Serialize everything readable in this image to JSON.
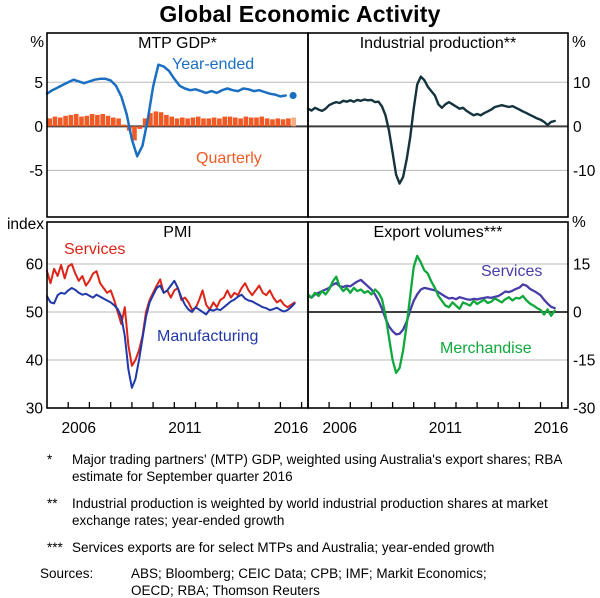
{
  "title": "Global Economic Activity",
  "colors": {
    "grid": "#b8b8b8",
    "zero": "#3d3d3d",
    "border": "#000000",
    "gdp_blue": "#1b6fc2",
    "bar_orange": "#f05a24",
    "bar_orange_light": "#f9ab80",
    "industrial_dark": "#14333f",
    "pmi_red": "#dd2417",
    "pmi_blue": "#2139a8",
    "exports_purple": "#473ca8",
    "exports_green": "#0fa83c"
  },
  "x_axis": {
    "label_years": [
      2006,
      2011,
      2016
    ],
    "domain": [
      2005,
      2017.3
    ]
  },
  "chart_data": [
    {
      "id": "mtp-gdp",
      "type": "line+bar",
      "title": "MTP GDP*",
      "row": 0,
      "col": 0,
      "axis_side": "left",
      "unit": "%",
      "ylim": [
        -10.3,
        10.6
      ],
      "grid_light": [
        5,
        -5
      ],
      "zero_line": true,
      "axis_labels": [
        5,
        0,
        -5
      ],
      "series": [
        {
          "name": "Year-ended",
          "color": "#1b6fc2",
          "width": 2.5,
          "start": 2005.0,
          "step": 0.25,
          "values": [
            3.7,
            4.1,
            4.4,
            4.7,
            5.0,
            5.3,
            5.1,
            4.9,
            5.1,
            5.3,
            5.4,
            5.4,
            5.2,
            4.6,
            3.4,
            1.4,
            -1.5,
            -3.4,
            -2.2,
            0.8,
            4.5,
            7.0,
            6.8,
            6.3,
            5.4,
            4.6,
            4.3,
            4.1,
            4.2,
            4.0,
            3.8,
            4.0,
            3.8,
            4.1,
            4.3,
            4.1,
            4.0,
            4.3,
            4.2,
            4.0,
            4.1,
            3.9,
            3.7,
            3.6,
            3.4,
            3.5
          ]
        }
      ],
      "bars": {
        "name": "Quarterly",
        "color": "#f05a24",
        "estimate_color": "#f9ab80",
        "last_estimate": true,
        "start": 2005.0,
        "step": 0.25,
        "values": [
          0.9,
          1.1,
          1.0,
          1.2,
          1.3,
          1.4,
          1.1,
          1.2,
          1.4,
          1.3,
          1.4,
          1.2,
          1.0,
          0.9,
          0.2,
          -0.5,
          -1.6,
          -0.3,
          0.9,
          1.5,
          1.7,
          1.6,
          1.3,
          1.1,
          0.9,
          1.0,
          0.9,
          1.0,
          1.1,
          0.9,
          0.9,
          1.0,
          0.9,
          1.1,
          1.1,
          1.0,
          0.9,
          1.1,
          1.0,
          1.0,
          1.1,
          0.9,
          0.8,
          0.9,
          0.8,
          0.9,
          1.0
        ]
      },
      "dot": {
        "x": 2016.6,
        "y": 3.5,
        "color": "#1b6fc2",
        "meaning": "RBA estimate"
      }
    },
    {
      "id": "industrial-production",
      "type": "line",
      "title": "Industrial production**",
      "row": 0,
      "col": 1,
      "axis_side": "right",
      "unit": "%",
      "ylim": [
        -20.6,
        21.2
      ],
      "grid_light": [
        10,
        -10
      ],
      "zero_line": true,
      "axis_labels": [
        10,
        0,
        -10
      ],
      "series": [
        {
          "name": "Industrial production",
          "color": "#14333f",
          "width": 2.4,
          "start": 2005.0,
          "step": 0.1667,
          "values": [
            4.0,
            3.6,
            4.2,
            3.8,
            3.5,
            4.0,
            4.8,
            5.2,
            5.5,
            5.3,
            5.8,
            5.6,
            5.9,
            5.6,
            6.0,
            5.8,
            6.1,
            5.9,
            6.0,
            5.5,
            5.6,
            4.5,
            2.5,
            -1.0,
            -6.0,
            -11.0,
            -13.0,
            -11.5,
            -7.5,
            -2.5,
            4.0,
            9.5,
            11.3,
            10.5,
            9.0,
            8.0,
            7.0,
            5.0,
            4.2,
            5.0,
            5.5,
            5.0,
            4.5,
            4.0,
            4.2,
            3.5,
            3.0,
            2.5,
            2.8,
            2.5,
            3.0,
            3.4,
            3.8,
            4.4,
            4.6,
            4.8,
            4.6,
            4.4,
            4.6,
            4.2,
            3.8,
            3.4,
            3.0,
            2.6,
            2.2,
            1.8,
            1.5,
            1.0,
            0.3,
            1.0,
            1.2
          ]
        }
      ]
    },
    {
      "id": "pmi",
      "type": "line",
      "title": "PMI",
      "row": 1,
      "col": 0,
      "axis_side": "left",
      "unit": "index",
      "ylim": [
        30,
        68.75
      ],
      "grid_light": [
        60,
        50,
        40
      ],
      "zero_line": false,
      "axis_labels": [
        60,
        50,
        40,
        30
      ],
      "series": [
        {
          "name": "Services",
          "color": "#dd2417",
          "width": 2.0,
          "start": 2005.0,
          "step": 0.1667,
          "values": [
            58.5,
            56.0,
            59.0,
            57.5,
            59.8,
            57.0,
            59.5,
            60.0,
            58.0,
            56.5,
            57.5,
            55.5,
            56.5,
            58.0,
            58.5,
            56.0,
            55.0,
            54.0,
            54.5,
            52.5,
            50.0,
            47.5,
            51.0,
            43.0,
            38.8,
            40.0,
            42.0,
            45.0,
            50.0,
            52.5,
            54.0,
            55.5,
            56.8,
            54.0,
            54.5,
            53.0,
            54.5,
            55.0,
            52.5,
            53.0,
            52.0,
            50.5,
            50.8,
            52.5,
            54.5,
            51.5,
            50.5,
            52.0,
            51.0,
            52.5,
            53.0,
            54.5,
            53.0,
            54.0,
            53.5,
            55.0,
            56.0,
            54.5,
            53.5,
            54.5,
            55.5,
            54.0,
            53.5,
            54.5,
            53.0,
            52.0,
            52.5,
            51.5,
            51.0,
            51.5,
            52.0
          ]
        },
        {
          "name": "Manufacturing",
          "color": "#2139a8",
          "width": 2.0,
          "start": 2005.0,
          "step": 0.1667,
          "values": [
            53.3,
            52.0,
            51.8,
            53.5,
            54.0,
            53.8,
            54.5,
            55.0,
            54.6,
            54.0,
            53.6,
            53.8,
            53.4,
            53.0,
            53.6,
            53.2,
            52.8,
            52.4,
            52.0,
            51.4,
            50.6,
            49.0,
            45.0,
            38.0,
            34.2,
            36.0,
            40.0,
            44.5,
            49.0,
            52.0,
            53.5,
            55.0,
            55.5,
            54.0,
            54.5,
            55.5,
            56.5,
            55.0,
            53.0,
            51.5,
            50.5,
            50.0,
            51.0,
            50.5,
            50.0,
            49.5,
            50.5,
            50.3,
            50.6,
            50.4,
            51.0,
            51.6,
            52.2,
            52.6,
            53.2,
            53.6,
            52.8,
            52.4,
            52.2,
            51.8,
            51.4,
            51.0,
            50.8,
            50.4,
            50.6,
            50.9,
            50.4,
            50.1,
            50.4,
            51.0,
            51.8
          ]
        }
      ]
    },
    {
      "id": "export-volumes",
      "type": "line",
      "title": "Export volumes***",
      "row": 1,
      "col": 1,
      "axis_side": "right",
      "unit": "%",
      "ylim": [
        -30,
        28.1
      ],
      "grid_light": [
        15,
        -15
      ],
      "zero_line": true,
      "axis_labels": [
        15,
        0,
        -15,
        -30
      ],
      "series": [
        {
          "name": "Services",
          "color": "#473ca8",
          "width": 2.3,
          "start": 2005.0,
          "step": 0.1667,
          "values": [
            5.0,
            4.5,
            5.5,
            6.0,
            6.5,
            7.0,
            7.5,
            8.5,
            9.0,
            8.0,
            7.8,
            8.2,
            8.0,
            8.8,
            9.5,
            10.0,
            9.0,
            8.0,
            7.0,
            5.5,
            3.5,
            1.0,
            -2.0,
            -4.5,
            -6.0,
            -7.0,
            -6.8,
            -5.5,
            -3.0,
            0.5,
            3.5,
            5.5,
            7.0,
            7.5,
            7.3,
            7.0,
            6.8,
            6.2,
            5.5,
            4.8,
            4.2,
            4.4,
            4.0,
            4.6,
            4.3,
            4.0,
            3.8,
            4.1,
            3.9,
            4.2,
            4.4,
            4.6,
            4.4,
            4.7,
            5.0,
            5.6,
            6.4,
            6.2,
            6.6,
            7.2,
            7.6,
            8.6,
            8.2,
            7.2,
            6.6,
            6.0,
            5.2,
            3.8,
            2.6,
            1.6,
            1.2
          ]
        },
        {
          "name": "Merchandise",
          "color": "#0fa83c",
          "width": 2.3,
          "start": 2005.0,
          "step": 0.1667,
          "values": [
            5.5,
            4.5,
            6.0,
            5.0,
            6.5,
            5.5,
            7.0,
            9.5,
            11.0,
            8.0,
            6.5,
            7.5,
            6.0,
            7.5,
            6.5,
            7.0,
            6.0,
            6.5,
            5.5,
            7.0,
            6.0,
            4.0,
            -1.0,
            -8.0,
            -15.0,
            -19.0,
            -17.5,
            -12.0,
            -4.0,
            5.0,
            14.0,
            17.5,
            15.5,
            13.0,
            12.0,
            9.5,
            7.5,
            5.0,
            3.5,
            2.0,
            1.5,
            3.0,
            2.0,
            1.0,
            3.0,
            2.5,
            2.0,
            3.5,
            2.5,
            3.2,
            3.8,
            2.8,
            3.2,
            4.2,
            3.6,
            3.0,
            4.0,
            4.6,
            3.6,
            4.4,
            4.2,
            5.0,
            3.6,
            2.6,
            2.0,
            1.2,
            0.6,
            -0.8,
            0.8,
            -1.2,
            0.4
          ]
        }
      ]
    }
  ],
  "footnotes": [
    {
      "marker": "*",
      "text": "Major trading partners' (MTP) GDP, weighted using Australia's export shares; RBA estimate for September quarter 2016"
    },
    {
      "marker": "**",
      "text": "Industrial production is weighted by world industrial production shares at market exchange rates; year-ended growth"
    },
    {
      "marker": "***",
      "text": "Services exports are for select MTPs and Australia; year-ended growth"
    }
  ],
  "sources": {
    "label": "Sources:",
    "text": "ABS; Bloomberg; CEIC Data; CPB; IMF; Markit Economics; OECD; RBA; Thomson Reuters"
  }
}
